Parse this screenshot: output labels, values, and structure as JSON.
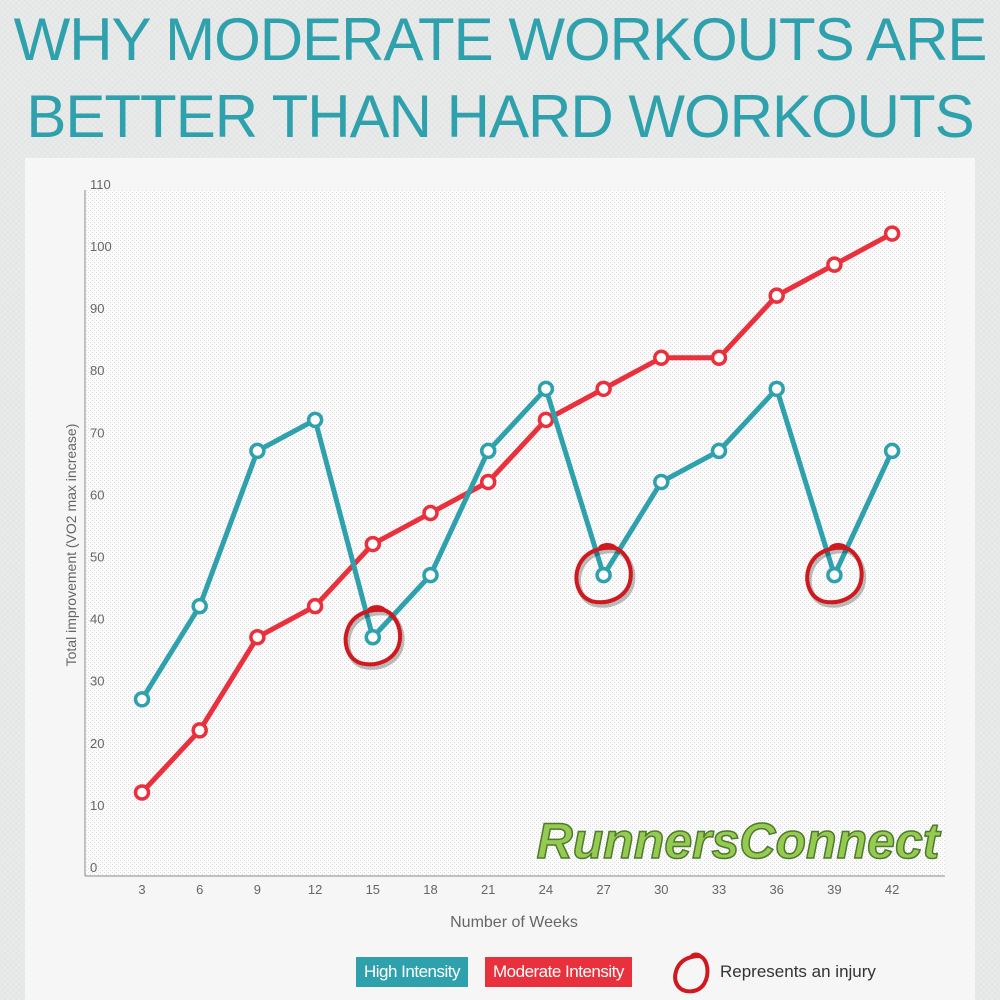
{
  "title": {
    "line1": "WHY MODERATE WORKOUTS ARE",
    "line2": "BETTER THAN HARD WORKOUTS"
  },
  "watermark": "RunnersConnect",
  "colors": {
    "high": "#2ea1ad",
    "moderate": "#e8313c",
    "injury": "#d0191f",
    "title": "#2ea1ad"
  },
  "legend": {
    "high": "High Intensity",
    "moderate": "Moderate Intensity",
    "injury": "Represents an injury"
  },
  "chart_data": {
    "type": "line",
    "xlabel": "Number of Weeks",
    "ylabel": "Total improvement (VO2 max increase)",
    "x": [
      3,
      6,
      9,
      12,
      15,
      18,
      21,
      24,
      27,
      30,
      33,
      36,
      39,
      42
    ],
    "ylim": [
      0,
      110
    ],
    "yticks": [
      0,
      10,
      20,
      30,
      40,
      50,
      60,
      70,
      80,
      90,
      100,
      110
    ],
    "grid": false,
    "series": [
      {
        "name": "High Intensity",
        "values": [
          27,
          42,
          67,
          72,
          37,
          47,
          67,
          77,
          47,
          62,
          67,
          77,
          47,
          67
        ]
      },
      {
        "name": "Moderate Intensity",
        "values": [
          12,
          22,
          37,
          42,
          52,
          57,
          62,
          72,
          77,
          82,
          82,
          92,
          97,
          102
        ]
      }
    ],
    "injuries": [
      15,
      27,
      39
    ],
    "legend_position": "bottom"
  }
}
